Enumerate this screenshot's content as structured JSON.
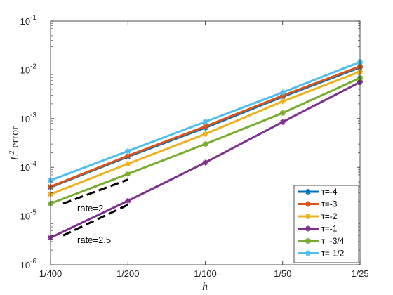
{
  "chart_data": {
    "type": "line",
    "xscale": "log",
    "yscale": "log",
    "x": [
      0.0025,
      0.005,
      0.01,
      0.02,
      0.04
    ],
    "x_tick_labels": [
      "1/400",
      "1/200",
      "1/100",
      "1/50",
      "1/25"
    ],
    "y_tick_labels": [
      {
        "base": "10",
        "exp": "-6"
      },
      {
        "base": "10",
        "exp": "-5"
      },
      {
        "base": "10",
        "exp": "-4"
      },
      {
        "base": "10",
        "exp": "-3"
      },
      {
        "base": "10",
        "exp": "-2"
      },
      {
        "base": "10",
        "exp": "-1"
      }
    ],
    "xlim": [
      0.0025,
      0.04
    ],
    "ylim": [
      1e-06,
      0.1
    ],
    "xlabel": "h",
    "ylabel": "L",
    "ylabel_sup": "2",
    "ylabel_suffix": " error",
    "legend_position": "bottom-right",
    "series": [
      {
        "name": "τ=-4",
        "color": "#0072bd",
        "marker": "star",
        "values": [
          3.9e-05,
          0.000165,
          0.00065,
          0.0028,
          0.0112
        ]
      },
      {
        "name": "τ=-3",
        "color": "#d95319",
        "marker": "star",
        "values": [
          4e-05,
          0.000172,
          0.00069,
          0.00295,
          0.0118
        ]
      },
      {
        "name": "τ=-2",
        "color": "#edb120",
        "marker": "star",
        "values": [
          2.8e-05,
          0.000118,
          0.00048,
          0.00225,
          0.0092
        ]
      },
      {
        "name": "τ=-1",
        "color": "#7e2f8e",
        "marker": "star",
        "values": [
          3.6e-06,
          2.05e-05,
          0.000125,
          0.00085,
          0.0056
        ]
      },
      {
        "name": "τ=-3/4",
        "color": "#77ac30",
        "marker": "star",
        "values": [
          1.8e-05,
          7.3e-05,
          0.0003,
          0.0013,
          0.0068
        ]
      },
      {
        "name": "τ=-1/2",
        "color": "#4dbeee",
        "marker": "star",
        "values": [
          5.4e-05,
          0.000215,
          0.00086,
          0.00345,
          0.0145
        ]
      }
    ],
    "reference_lines": [
      {
        "label": "rate=2",
        "x": [
          0.0028,
          0.005
        ],
        "y": [
          1.8e-05,
          5.6e-05
        ],
        "color": "#000000",
        "style": "dashed"
      },
      {
        "label": "rate=2.5",
        "x": [
          0.0028,
          0.005
        ],
        "y": [
          4e-06,
          1.7e-05
        ],
        "color": "#000000",
        "style": "dashed"
      }
    ],
    "grid": false
  }
}
